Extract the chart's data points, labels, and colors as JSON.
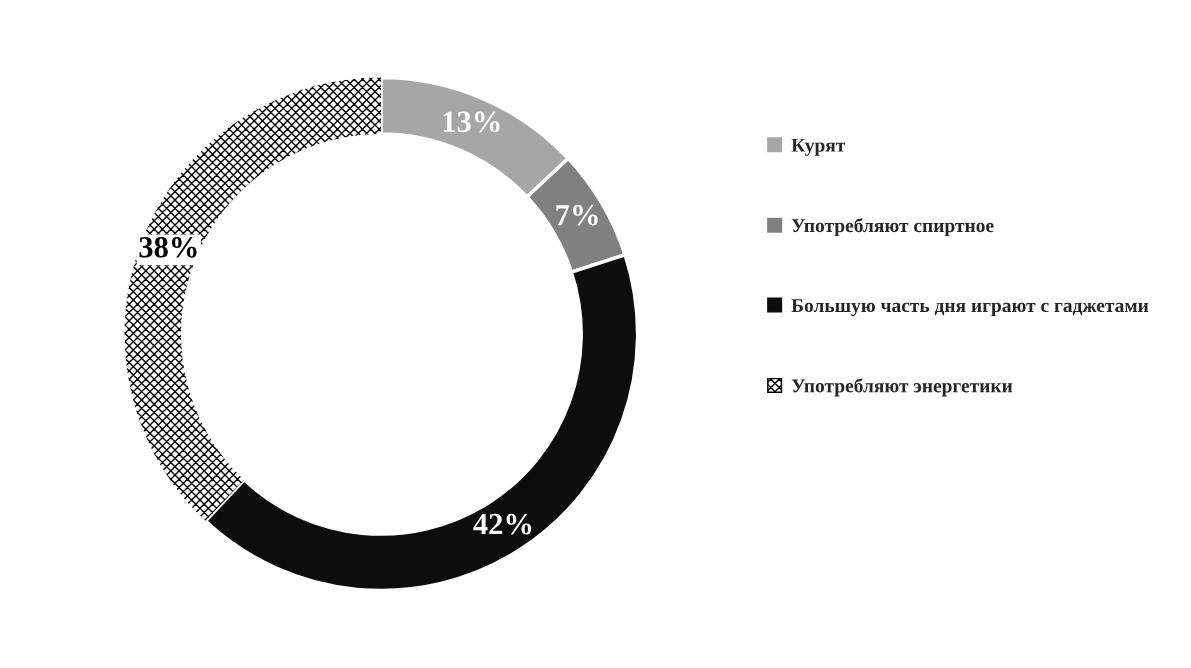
{
  "chart_data": {
    "type": "donut",
    "categories": [
      "Курят",
      "Употребляют спиртное",
      "Большую часть дня играют с гаджетами",
      "Употребляют энергетики"
    ],
    "values": [
      13,
      7,
      42,
      38
    ],
    "colors": [
      "#a6a6a6",
      "#808080",
      "#0d0d0d",
      "#ffffff"
    ],
    "value_labels": [
      "13%",
      "7%",
      "42%",
      "38%"
    ],
    "legend": "right"
  }
}
